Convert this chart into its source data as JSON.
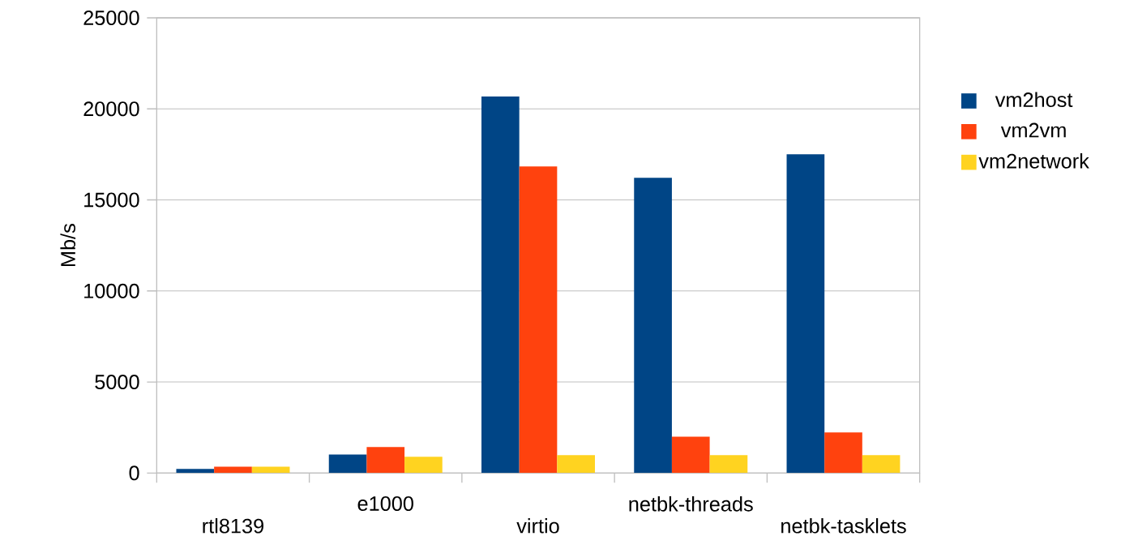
{
  "chart_data": {
    "type": "bar",
    "ylabel": "Mb/s",
    "categories": [
      "rtl8139",
      "e1000",
      "virtio",
      "netbk-threads",
      "netbk-tasklets"
    ],
    "series": [
      {
        "name": "vm2host",
        "color": "#004586",
        "values": [
          220,
          1020,
          20680,
          16220,
          17510
        ]
      },
      {
        "name": "vm2vm",
        "color": "#ff420e",
        "values": [
          350,
          1430,
          16840,
          2000,
          2230
        ]
      },
      {
        "name": "vm2network",
        "color": "#ffd320",
        "values": [
          350,
          890,
          980,
          980,
          980
        ]
      }
    ],
    "ylim": [
      0,
      25000
    ],
    "yticks": [
      0,
      5000,
      10000,
      15000,
      20000,
      25000
    ],
    "grid": "y",
    "legend": "right"
  }
}
